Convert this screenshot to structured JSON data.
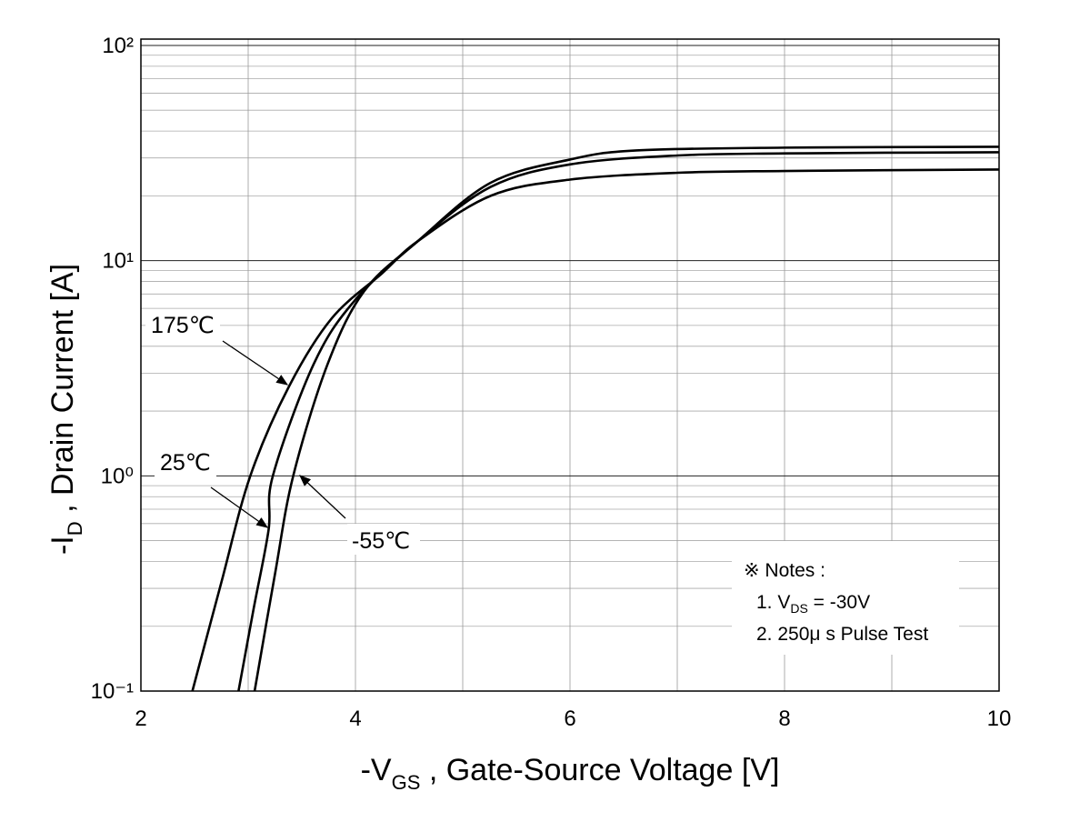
{
  "chart_data": {
    "type": "line",
    "xlabel": [
      "-V",
      "GS",
      " , Gate-Source Voltage  [V]"
    ],
    "ylabel": [
      "-I",
      "D",
      " , Drain Current  [A]"
    ],
    "xlim": [
      2,
      10
    ],
    "xticks": [
      2,
      4,
      6,
      8,
      10
    ],
    "x_minor_ticks": [
      3,
      5,
      7,
      9
    ],
    "ylim": [
      0.1,
      107
    ],
    "log_y": true,
    "yticks": [
      {
        "value": 0.1,
        "label": "10⁻¹"
      },
      {
        "value": 1,
        "label": "10⁰"
      },
      {
        "value": 10,
        "label": "10¹"
      },
      {
        "value": 100,
        "label": "10²"
      }
    ],
    "y_minor_ticks": [
      0.2,
      0.3,
      0.4,
      0.5,
      0.6,
      0.7,
      0.8,
      0.9,
      2,
      3,
      4,
      5,
      6,
      7,
      8,
      9,
      20,
      30,
      40,
      50,
      60,
      70,
      80,
      90
    ],
    "grid": true,
    "series": [
      {
        "name": "175℃",
        "color": "#000000",
        "x": [
          2.48,
          2.75,
          3.02,
          3.38,
          3.78,
          4.25,
          4.58,
          5.26,
          6.0,
          7.0,
          8.0,
          10.0
        ],
        "values": [
          0.1,
          0.32,
          1,
          2.6,
          5.4,
          8.75,
          12.3,
          20,
          23.8,
          25.6,
          26.1,
          26.5
        ]
      },
      {
        "name": "25℃",
        "color": "#000000",
        "x": [
          2.91,
          3.05,
          3.19,
          3.23,
          3.61,
          3.99,
          4.58,
          5.26,
          6.0,
          7.0,
          8.0,
          10.0
        ],
        "values": [
          0.1,
          0.24,
          0.56,
          1,
          3.3,
          6.5,
          12.3,
          22,
          28,
          30.8,
          31.5,
          31.9
        ]
      },
      {
        "name": "-55℃",
        "color": "#000000",
        "x": [
          3.06,
          3.25,
          3.42,
          3.74,
          4.08,
          4.58,
          5.26,
          6.0,
          6.62,
          8.0,
          10.0
        ],
        "values": [
          0.1,
          0.35,
          1,
          3.3,
          7.2,
          12.3,
          23,
          29.5,
          32.5,
          33.5,
          33.8
        ]
      }
    ],
    "notes": [
      [
        "※ Notes :"
      ],
      [
        "1. V",
        "DS",
        " = -30V"
      ],
      [
        "2. 250μ s Pulse Test"
      ]
    ]
  }
}
